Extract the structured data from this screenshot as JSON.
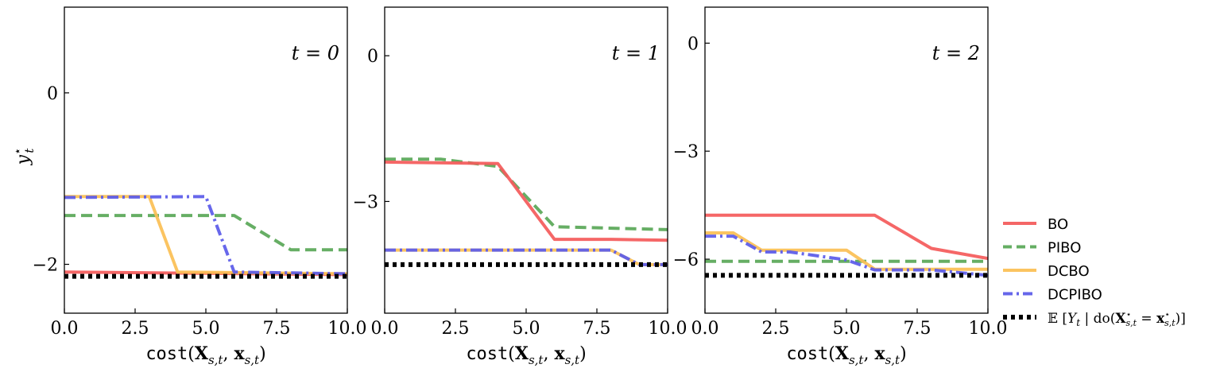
{
  "chart_data": [
    {
      "type": "line",
      "panel_label": "t = 0",
      "ylabel": "y*_t",
      "xlabel": "cost(X_{s,t}, x_{s,t})",
      "xlim": [
        0,
        10
      ],
      "ylim": [
        -2.57,
        1.0
      ],
      "xticks": [
        0,
        2.5,
        5,
        7.5,
        10
      ],
      "xtick_labels": [
        "0.0",
        "2.5",
        "5.0",
        "7.5",
        "10.0"
      ],
      "yticks": [
        0,
        -2
      ],
      "ytick_labels": [
        "0",
        "−2"
      ],
      "series": [
        {
          "name": "PIBO",
          "x": [
            0,
            6,
            8,
            10
          ],
          "y": [
            -1.43,
            -1.43,
            -1.83,
            -1.83
          ]
        },
        {
          "name": "BO",
          "x": [
            0,
            10
          ],
          "y": [
            -2.09,
            -2.12
          ]
        },
        {
          "name": "DCBO",
          "x": [
            0,
            3,
            4,
            10
          ],
          "y": [
            -1.21,
            -1.21,
            -2.09,
            -2.11
          ]
        },
        {
          "name": "DCPIBO",
          "x": [
            0,
            5,
            6,
            10
          ],
          "y": [
            -1.22,
            -1.21,
            -2.09,
            -2.11
          ]
        },
        {
          "name": "E[Y_t | do(X*_{s,t} = x*_{s,t})]",
          "x": [
            0,
            10
          ],
          "y": [
            -2.14,
            -2.14
          ]
        }
      ]
    },
    {
      "type": "line",
      "panel_label": "t = 1",
      "xlabel": "cost(X_{s,t}, x_{s,t})",
      "xlim": [
        0,
        10
      ],
      "ylim": [
        -5.3,
        1.0
      ],
      "xticks": [
        0,
        2.5,
        5,
        7.5,
        10
      ],
      "xtick_labels": [
        "0.0",
        "2.5",
        "5.0",
        "7.5",
        "10.0"
      ],
      "yticks": [
        0,
        -3
      ],
      "ytick_labels": [
        "0",
        "−3"
      ],
      "series": [
        {
          "name": "PIBO",
          "x": [
            0,
            2,
            4,
            6,
            10
          ],
          "y": [
            -2.13,
            -2.13,
            -2.28,
            -3.52,
            -3.58
          ]
        },
        {
          "name": "BO",
          "x": [
            0,
            4,
            6,
            8,
            10
          ],
          "y": [
            -2.19,
            -2.22,
            -3.78,
            -3.78,
            -3.8
          ]
        },
        {
          "name": "DCBO",
          "x": [
            0,
            8,
            9,
            10
          ],
          "y": [
            -4.0,
            -4.0,
            -4.3,
            -4.3
          ]
        },
        {
          "name": "DCPIBO",
          "x": [
            0,
            8,
            9,
            10
          ],
          "y": [
            -4.0,
            -4.0,
            -4.3,
            -4.3
          ]
        },
        {
          "name": "E[Y_t | do(X*_{s,t} = x*_{s,t})]",
          "x": [
            0,
            10
          ],
          "y": [
            -4.3,
            -4.3
          ]
        }
      ]
    },
    {
      "type": "line",
      "panel_label": "t = 2",
      "xlabel": "cost(X_{s,t}, x_{s,t})",
      "xlim": [
        0,
        10
      ],
      "ylim": [
        -7.5,
        1.0
      ],
      "xticks": [
        0,
        2.5,
        5,
        7.5,
        10
      ],
      "xtick_labels": [
        "0.0",
        "2.5",
        "5.0",
        "7.5",
        "10.0"
      ],
      "yticks": [
        0,
        -3,
        -6
      ],
      "ytick_labels": [
        "0",
        "−3",
        "−6"
      ],
      "series": [
        {
          "name": "BO",
          "x": [
            0,
            6,
            8,
            10
          ],
          "y": [
            -4.78,
            -4.78,
            -5.7,
            -5.98
          ]
        },
        {
          "name": "PIBO",
          "x": [
            0,
            10
          ],
          "y": [
            -6.06,
            -6.06
          ]
        },
        {
          "name": "DCBO",
          "x": [
            0,
            1,
            2,
            5,
            6,
            10
          ],
          "y": [
            -5.27,
            -5.27,
            -5.75,
            -5.75,
            -6.28,
            -6.28
          ]
        },
        {
          "name": "DCPIBO",
          "x": [
            0,
            1,
            2,
            3,
            5,
            6,
            8,
            10
          ],
          "y": [
            -5.36,
            -5.36,
            -5.8,
            -5.8,
            -6.02,
            -6.3,
            -6.3,
            -6.45
          ]
        },
        {
          "name": "E[Y_t | do(X*_{s,t} = x*_{s,t})]",
          "x": [
            0,
            10
          ],
          "y": [
            -6.45,
            -6.45
          ]
        }
      ]
    }
  ],
  "legend": {
    "placement": "right",
    "items": [
      {
        "label": "BO",
        "color": "#f45b5b",
        "dash": "solid"
      },
      {
        "label": "PIBO",
        "color": "#5aa858",
        "dash": "dashed"
      },
      {
        "label": "DCBO",
        "color": "#fbc055",
        "dash": "solid"
      },
      {
        "label": "DCPIBO",
        "color": "#5b5be9",
        "dash": "dashdot"
      },
      {
        "label": "E[Y_t | do(X*_{s,t} = x*_{s,t})]",
        "color": "#000000",
        "dash": "dotted"
      }
    ]
  }
}
